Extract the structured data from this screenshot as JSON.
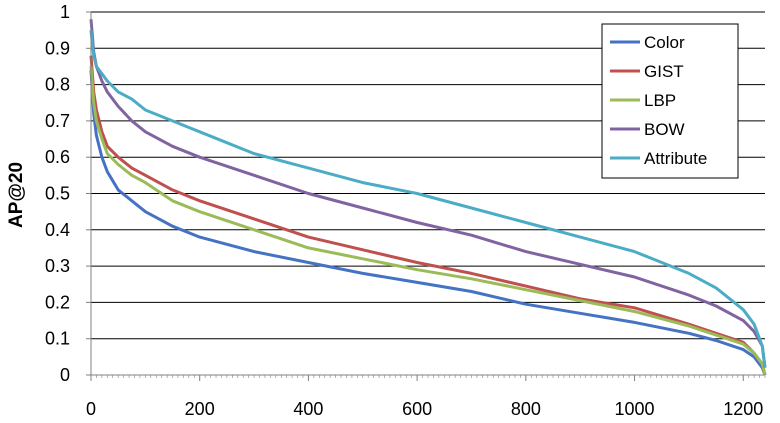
{
  "chart_data": {
    "type": "line",
    "title": "",
    "xlabel": "",
    "ylabel": "AP@20",
    "xlim": [
      0,
      1240
    ],
    "ylim": [
      0,
      1
    ],
    "x_ticks": [
      "0",
      "200",
      "400",
      "600",
      "800",
      "1000",
      "1200"
    ],
    "y_ticks": [
      "0",
      "0.1",
      "0.2",
      "0.3",
      "0.4",
      "0.5",
      "0.6",
      "0.7",
      "0.8",
      "0.9",
      "1"
    ],
    "grid": "horizontal",
    "legend_position": "top-right",
    "series": [
      {
        "name": "Color",
        "color": "#4472C4",
        "points": [
          [
            0,
            0.84
          ],
          [
            5,
            0.72
          ],
          [
            10,
            0.66
          ],
          [
            20,
            0.6
          ],
          [
            30,
            0.56
          ],
          [
            50,
            0.51
          ],
          [
            75,
            0.48
          ],
          [
            100,
            0.45
          ],
          [
            150,
            0.41
          ],
          [
            200,
            0.38
          ],
          [
            300,
            0.34
          ],
          [
            400,
            0.31
          ],
          [
            500,
            0.28
          ],
          [
            600,
            0.255
          ],
          [
            700,
            0.23
          ],
          [
            800,
            0.195
          ],
          [
            900,
            0.17
          ],
          [
            1000,
            0.145
          ],
          [
            1100,
            0.115
          ],
          [
            1150,
            0.095
          ],
          [
            1200,
            0.07
          ],
          [
            1220,
            0.05
          ],
          [
            1235,
            0.02
          ],
          [
            1240,
            0
          ]
        ]
      },
      {
        "name": "GIST",
        "color": "#C0504D",
        "points": [
          [
            0,
            0.88
          ],
          [
            5,
            0.78
          ],
          [
            10,
            0.73
          ],
          [
            20,
            0.67
          ],
          [
            30,
            0.63
          ],
          [
            50,
            0.6
          ],
          [
            75,
            0.57
          ],
          [
            100,
            0.55
          ],
          [
            150,
            0.51
          ],
          [
            200,
            0.48
          ],
          [
            300,
            0.43
          ],
          [
            400,
            0.38
          ],
          [
            500,
            0.345
          ],
          [
            600,
            0.31
          ],
          [
            700,
            0.28
          ],
          [
            800,
            0.245
          ],
          [
            900,
            0.21
          ],
          [
            1000,
            0.185
          ],
          [
            1100,
            0.14
          ],
          [
            1150,
            0.115
          ],
          [
            1200,
            0.09
          ],
          [
            1220,
            0.06
          ],
          [
            1235,
            0.03
          ],
          [
            1240,
            0
          ]
        ]
      },
      {
        "name": "LBP",
        "color": "#9BBB59",
        "points": [
          [
            0,
            0.85
          ],
          [
            5,
            0.75
          ],
          [
            10,
            0.7
          ],
          [
            20,
            0.65
          ],
          [
            30,
            0.61
          ],
          [
            50,
            0.58
          ],
          [
            75,
            0.55
          ],
          [
            100,
            0.53
          ],
          [
            150,
            0.48
          ],
          [
            200,
            0.45
          ],
          [
            300,
            0.4
          ],
          [
            400,
            0.35
          ],
          [
            500,
            0.32
          ],
          [
            600,
            0.29
          ],
          [
            700,
            0.265
          ],
          [
            800,
            0.235
          ],
          [
            900,
            0.205
          ],
          [
            1000,
            0.175
          ],
          [
            1100,
            0.135
          ],
          [
            1150,
            0.11
          ],
          [
            1200,
            0.085
          ],
          [
            1220,
            0.06
          ],
          [
            1235,
            0.03
          ],
          [
            1240,
            0
          ]
        ]
      },
      {
        "name": "BOW",
        "color": "#8064A2",
        "points": [
          [
            0,
            0.98
          ],
          [
            5,
            0.89
          ],
          [
            10,
            0.85
          ],
          [
            20,
            0.81
          ],
          [
            30,
            0.78
          ],
          [
            50,
            0.74
          ],
          [
            75,
            0.7
          ],
          [
            100,
            0.67
          ],
          [
            150,
            0.63
          ],
          [
            200,
            0.6
          ],
          [
            300,
            0.55
          ],
          [
            400,
            0.5
          ],
          [
            500,
            0.46
          ],
          [
            600,
            0.42
          ],
          [
            700,
            0.385
          ],
          [
            800,
            0.34
          ],
          [
            900,
            0.305
          ],
          [
            1000,
            0.27
          ],
          [
            1100,
            0.22
          ],
          [
            1150,
            0.19
          ],
          [
            1200,
            0.15
          ],
          [
            1220,
            0.12
          ],
          [
            1235,
            0.08
          ],
          [
            1240,
            0.02
          ]
        ]
      },
      {
        "name": "Attribute",
        "color": "#4BACC6",
        "points": [
          [
            0,
            0.95
          ],
          [
            5,
            0.88
          ],
          [
            10,
            0.85
          ],
          [
            20,
            0.83
          ],
          [
            30,
            0.81
          ],
          [
            50,
            0.78
          ],
          [
            75,
            0.76
          ],
          [
            100,
            0.73
          ],
          [
            150,
            0.7
          ],
          [
            200,
            0.67
          ],
          [
            300,
            0.61
          ],
          [
            400,
            0.57
          ],
          [
            500,
            0.53
          ],
          [
            600,
            0.5
          ],
          [
            700,
            0.46
          ],
          [
            800,
            0.42
          ],
          [
            900,
            0.38
          ],
          [
            1000,
            0.34
          ],
          [
            1100,
            0.28
          ],
          [
            1150,
            0.24
          ],
          [
            1200,
            0.18
          ],
          [
            1220,
            0.14
          ],
          [
            1235,
            0.08
          ],
          [
            1240,
            0.02
          ]
        ]
      }
    ]
  }
}
